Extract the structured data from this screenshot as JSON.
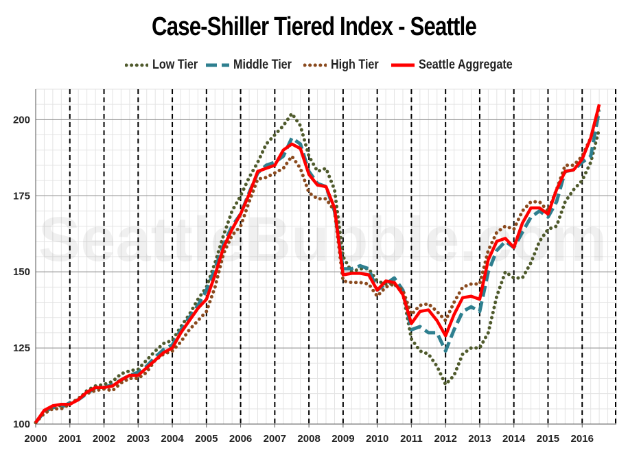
{
  "watermark": "SeattleBubble.com",
  "chart_data": {
    "type": "line",
    "title": "Case-Shiller Tiered Index - Seattle",
    "xlabel": "",
    "ylabel": "",
    "xlim": [
      2000.0,
      2017.0
    ],
    "ylim": [
      100,
      210
    ],
    "yticks": [
      100,
      125,
      150,
      175,
      200
    ],
    "xticks": [
      2000,
      2001,
      2002,
      2003,
      2004,
      2005,
      2006,
      2007,
      2008,
      2009,
      2010,
      2011,
      2012,
      2013,
      2014,
      2015,
      2016
    ],
    "grid": true,
    "legend_position": "top",
    "x": [
      2000.0,
      2000.25,
      2000.5,
      2000.75,
      2001.0,
      2001.25,
      2001.5,
      2001.75,
      2002.0,
      2002.25,
      2002.5,
      2002.75,
      2003.0,
      2003.25,
      2003.5,
      2003.75,
      2004.0,
      2004.25,
      2004.5,
      2004.75,
      2005.0,
      2005.25,
      2005.5,
      2005.75,
      2006.0,
      2006.25,
      2006.5,
      2006.75,
      2007.0,
      2007.25,
      2007.5,
      2007.75,
      2008.0,
      2008.25,
      2008.5,
      2008.75,
      2009.0,
      2009.25,
      2009.5,
      2009.75,
      2010.0,
      2010.25,
      2010.5,
      2010.75,
      2011.0,
      2011.25,
      2011.5,
      2011.75,
      2012.0,
      2012.25,
      2012.5,
      2012.75,
      2013.0,
      2013.25,
      2013.5,
      2013.75,
      2014.0,
      2014.25,
      2014.5,
      2014.75,
      2015.0,
      2015.25,
      2015.5,
      2015.75,
      2016.0,
      2016.25,
      2016.5
    ],
    "series": [
      {
        "name": "Low Tier",
        "color": "#4f5a2c",
        "style": "dotted",
        "values": [
          100.5,
          104,
          106,
          106,
          107,
          108,
          111,
          112.5,
          113,
          114,
          116.5,
          117.5,
          118,
          121,
          124,
          126.5,
          127.5,
          132,
          136,
          141,
          145,
          153,
          162,
          170,
          175,
          181,
          186,
          192,
          195,
          198,
          202,
          198,
          188,
          183,
          184,
          177,
          155,
          150,
          151,
          151,
          147,
          146,
          146,
          143,
          128,
          124,
          123,
          119,
          113,
          116,
          123,
          125,
          125,
          130,
          142,
          150,
          148,
          148,
          153,
          160,
          164,
          165,
          173,
          177,
          180,
          186,
          197
        ]
      },
      {
        "name": "Middle Tier",
        "color": "#2e7f8f",
        "style": "dashed",
        "values": [
          100.5,
          104,
          105.5,
          105.5,
          107,
          108,
          110,
          112,
          112,
          113,
          114.5,
          116,
          117,
          119,
          122,
          124.5,
          126,
          131,
          135,
          139,
          144,
          151,
          159,
          165,
          169,
          176,
          182.5,
          185,
          186,
          188,
          194,
          192,
          183,
          179,
          178,
          170,
          151,
          151,
          152,
          151,
          144,
          146,
          148,
          144,
          131,
          132,
          130,
          130,
          124,
          131,
          137,
          138.5,
          137,
          150,
          157,
          160,
          158,
          163,
          168,
          170,
          168,
          173,
          183,
          183.5,
          186,
          188,
          203
        ]
      },
      {
        "name": "High Tier",
        "color": "#8a4a1e",
        "style": "dotted",
        "values": [
          100.5,
          103.5,
          105,
          105,
          106.5,
          108.5,
          110,
          111,
          111.5,
          111,
          113.5,
          115,
          115,
          117,
          121,
          123,
          124,
          127,
          131,
          134,
          137,
          145,
          156,
          162,
          165,
          173,
          180.5,
          181,
          182.5,
          184,
          188,
          184,
          176,
          174,
          174,
          170,
          147,
          146.5,
          146.5,
          146,
          142,
          145,
          146,
          144,
          136,
          139,
          139.5,
          137,
          134,
          140,
          145,
          146,
          146,
          157,
          163,
          165,
          164,
          170,
          173,
          173,
          170,
          177,
          185,
          185,
          188,
          194,
          204
        ]
      },
      {
        "name": "Seattle Aggregate",
        "color": "#ff0000",
        "style": "solid",
        "values": [
          100.5,
          104.5,
          106,
          106.5,
          106.5,
          108,
          110.5,
          112,
          112,
          112.5,
          114.5,
          116,
          116,
          118.5,
          121,
          123.5,
          125,
          130,
          134,
          138,
          141,
          149,
          158,
          164,
          169,
          175.5,
          183,
          184,
          185,
          190,
          192,
          190.5,
          182,
          178.5,
          178,
          171,
          149,
          149.5,
          149.5,
          149,
          144,
          147,
          146.5,
          142.5,
          133,
          137,
          137.5,
          134,
          129,
          136,
          141.5,
          142,
          141,
          154,
          160,
          161,
          158,
          166,
          171,
          171,
          169,
          177,
          183,
          183.5,
          187,
          194,
          205
        ]
      }
    ]
  }
}
